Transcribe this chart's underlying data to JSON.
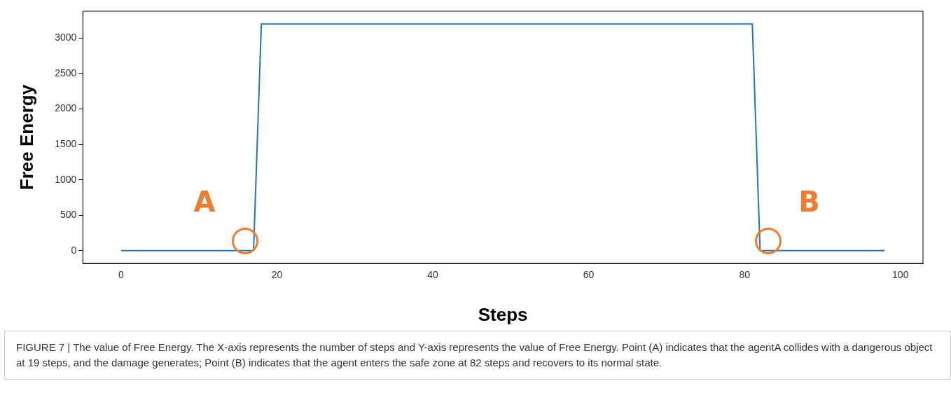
{
  "chart_data": {
    "type": "line",
    "xlabel": "Steps",
    "ylabel": "Free Energy",
    "x": [
      0,
      17,
      18,
      81,
      82,
      98
    ],
    "series": [
      {
        "color": "#1f77b4",
        "values": [
          0,
          0,
          3200,
          3200,
          0,
          0
        ]
      }
    ],
    "xlim": [
      -4.9,
      102.9
    ],
    "xticks": [
      0,
      20,
      40,
      60,
      80,
      100
    ],
    "ylim": [
      -180,
      3380
    ],
    "yticks": [
      0,
      500,
      1000,
      1500,
      2000,
      2500,
      3000
    ],
    "grid": false,
    "legend": false,
    "marker": "none",
    "line_style": "solid",
    "annotations": [
      "A",
      "B",
      "FIGURE 7 | The value of Free Energy. The X-axis represents the number of steps and Y-axis represents the value of Free Energy. Point (A) indicates that the agentA collides with a dangerous object at 19 steps, and the damage generates; Point (B) indicates that the agent enters the safe zone at 82 steps and recovers to its normal state."
    ]
  }
}
